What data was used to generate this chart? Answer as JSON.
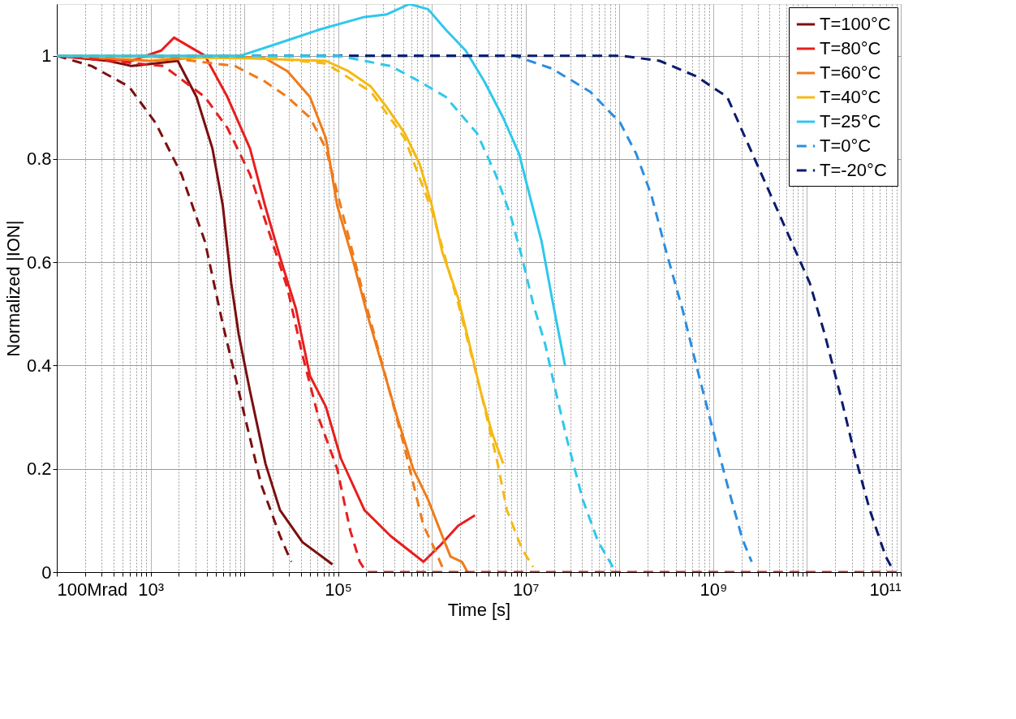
{
  "chart_data": {
    "type": "line",
    "xlabel": "Time [s]",
    "ylabel": "Normalized |ION|",
    "log": "x",
    "grid": true,
    "legend": "top right",
    "xlim": [
      100,
      100000000000
    ],
    "ylim": [
      0,
      1.1
    ],
    "xticks": [
      {
        "value": 100,
        "label": "100Mrad"
      },
      {
        "value": 200,
        "label": null
      },
      {
        "value": 300,
        "label": null
      },
      {
        "value": 400,
        "label": null
      },
      {
        "value": 500,
        "label": null
      },
      {
        "value": 600,
        "label": null
      },
      {
        "value": 700,
        "label": null
      },
      {
        "value": 800,
        "label": null
      },
      {
        "value": 900,
        "label": null
      },
      {
        "value": 1000,
        "label": "10³"
      },
      {
        "value": 2000,
        "label": null
      },
      {
        "value": 3000,
        "label": null
      },
      {
        "value": 4000,
        "label": null
      },
      {
        "value": 5000,
        "label": null
      },
      {
        "value": 6000,
        "label": null
      },
      {
        "value": 7000,
        "label": null
      },
      {
        "value": 8000,
        "label": null
      },
      {
        "value": 9000,
        "label": null
      },
      {
        "value": 10000,
        "label": null
      },
      {
        "value": 20000,
        "label": null
      },
      {
        "value": 30000,
        "label": null
      },
      {
        "value": 40000,
        "label": null
      },
      {
        "value": 50000,
        "label": null
      },
      {
        "value": 60000,
        "label": null
      },
      {
        "value": 70000,
        "label": null
      },
      {
        "value": 80000,
        "label": null
      },
      {
        "value": 90000,
        "label": null
      },
      {
        "value": 100000,
        "label": "10⁵"
      },
      {
        "value": 200000,
        "label": null
      },
      {
        "value": 300000,
        "label": null
      },
      {
        "value": 400000,
        "label": null
      },
      {
        "value": 500000,
        "label": null
      },
      {
        "value": 600000,
        "label": null
      },
      {
        "value": 700000,
        "label": null
      },
      {
        "value": 800000,
        "label": null
      },
      {
        "value": 900000,
        "label": null
      },
      {
        "value": 1000000,
        "label": null
      },
      {
        "value": 2000000,
        "label": null
      },
      {
        "value": 3000000,
        "label": null
      },
      {
        "value": 4000000,
        "label": null
      },
      {
        "value": 5000000,
        "label": null
      },
      {
        "value": 6000000,
        "label": null
      },
      {
        "value": 7000000,
        "label": null
      },
      {
        "value": 8000000,
        "label": null
      },
      {
        "value": 9000000,
        "label": null
      },
      {
        "value": 10000000,
        "label": "10⁷"
      },
      {
        "value": 20000000,
        "label": null
      },
      {
        "value": 30000000,
        "label": null
      },
      {
        "value": 40000000,
        "label": null
      },
      {
        "value": 50000000,
        "label": null
      },
      {
        "value": 60000000,
        "label": null
      },
      {
        "value": 70000000,
        "label": null
      },
      {
        "value": 80000000,
        "label": null
      },
      {
        "value": 90000000,
        "label": null
      },
      {
        "value": 100000000,
        "label": null
      },
      {
        "value": 200000000,
        "label": null
      },
      {
        "value": 300000000,
        "label": null
      },
      {
        "value": 400000000,
        "label": null
      },
      {
        "value": 500000000,
        "label": null
      },
      {
        "value": 600000000,
        "label": null
      },
      {
        "value": 700000000,
        "label": null
      },
      {
        "value": 800000000,
        "label": null
      },
      {
        "value": 900000000,
        "label": null
      },
      {
        "value": 1000000000,
        "label": "10⁹"
      },
      {
        "value": 2000000000,
        "label": null
      },
      {
        "value": 3000000000,
        "label": null
      },
      {
        "value": 4000000000,
        "label": null
      },
      {
        "value": 5000000000,
        "label": null
      },
      {
        "value": 6000000000,
        "label": null
      },
      {
        "value": 7000000000,
        "label": null
      },
      {
        "value": 8000000000,
        "label": null
      },
      {
        "value": 9000000000,
        "label": null
      },
      {
        "value": 10000000000,
        "label": null
      },
      {
        "value": 20000000000,
        "label": null
      },
      {
        "value": 30000000000,
        "label": null
      },
      {
        "value": 40000000000,
        "label": null
      },
      {
        "value": 50000000000,
        "label": null
      },
      {
        "value": 60000000000,
        "label": null
      },
      {
        "value": 70000000000,
        "label": null
      },
      {
        "value": 80000000000,
        "label": null
      },
      {
        "value": 90000000000,
        "label": null
      },
      {
        "value": 100000000000,
        "label": "10¹¹"
      }
    ],
    "yticks": [
      0,
      0.2,
      0.4,
      0.6,
      0.8,
      1
    ],
    "series": [
      {
        "name": "T=100°C",
        "color": "#7b0f0f",
        "line_style": "solid",
        "x": [
          100,
          355,
          630,
          1100,
          1950,
          3090,
          4570,
          5890,
          7240,
          8710,
          11500,
          16800,
          24000,
          41700,
          87000
        ],
        "values": [
          1.0,
          0.99,
          0.98,
          0.985,
          0.99,
          0.92,
          0.82,
          0.71,
          0.56,
          0.46,
          0.35,
          0.21,
          0.12,
          0.058,
          0.015
        ]
      },
      {
        "name": "T=80°C",
        "color": "#e81e1e",
        "line_style": "solid",
        "x": [
          100,
          630,
          1300,
          1780,
          3800,
          6600,
          11500,
          16600,
          24000,
          35500,
          50100,
          74100,
          107000,
          191000,
          363000,
          813000,
          1200000,
          1910000,
          2880000
        ],
        "values": [
          1.0,
          0.99,
          1.01,
          1.035,
          1.0,
          0.92,
          0.82,
          0.71,
          0.61,
          0.51,
          0.38,
          0.32,
          0.22,
          0.12,
          0.07,
          0.02,
          0.05,
          0.09,
          0.11
        ]
      },
      {
        "name": "T=60°C",
        "color": "#ef7b1a",
        "line_style": "solid",
        "x": [
          100,
          1000,
          5890,
          16600,
          28800,
          50100,
          74100,
          97700,
          141000,
          204000,
          295000,
          427000,
          631000,
          912000,
          1290000,
          1580000,
          2090000,
          2400000
        ],
        "values": [
          1.0,
          0.99,
          1.0,
          0.995,
          0.97,
          0.92,
          0.84,
          0.71,
          0.61,
          0.5,
          0.4,
          0.3,
          0.2,
          0.14,
          0.07,
          0.03,
          0.02,
          0.0
        ]
      },
      {
        "name": "T=40°C",
        "color": "#f5b914",
        "line_style": "solid",
        "x": [
          100,
          10000,
          74100,
          129000,
          224000,
          331000,
          513000,
          741000,
          1000000,
          1290000,
          1910000,
          2450000,
          3310000,
          4370000,
          5750000
        ],
        "values": [
          1.0,
          0.995,
          0.99,
          0.97,
          0.94,
          0.9,
          0.85,
          0.79,
          0.71,
          0.62,
          0.53,
          0.45,
          0.35,
          0.27,
          0.21
        ]
      },
      {
        "name": "T=25°C",
        "color": "#2ec8ec",
        "line_style": "solid",
        "x": [
          100,
          2400,
          9120,
          24000,
          61700,
          191000,
          331000,
          575000,
          912000,
          1410000,
          2290000,
          3630000,
          5750000,
          8510000,
          11000000,
          14800000,
          19100000,
          26300000
        ],
        "values": [
          1.0,
          1.0,
          1.0,
          1.025,
          1.05,
          1.075,
          1.08,
          1.1,
          1.09,
          1.05,
          1.01,
          0.95,
          0.88,
          0.81,
          0.73,
          0.64,
          0.53,
          0.4
        ]
      },
      {
        "name": "T=0°C",
        "color": "#2a8de0",
        "line_style": "dashed",
        "x": [
          100,
          7590000,
          19100000,
          49000000,
          102000000,
          151000000,
          219000000,
          316000000,
          468000000,
          661000000,
          977000000,
          1410000000,
          2040000000,
          2570000000
        ],
        "values": [
          1.0,
          1.0,
          0.975,
          0.93,
          0.87,
          0.81,
          0.73,
          0.62,
          0.51,
          0.4,
          0.28,
          0.17,
          0.065,
          0.02
        ]
      },
      {
        "name": "T=-20°C",
        "color": "#0a1a6e",
        "line_style": "dashed",
        "x": [
          100,
          105000000,
          269000000,
          661000000,
          1410000000,
          10700000000,
          15500000000,
          22900000000,
          33100000000,
          46800000000,
          69200000000,
          79400000000
        ],
        "values": [
          1.0,
          1.0,
          0.99,
          0.96,
          0.92,
          0.56,
          0.46,
          0.34,
          0.22,
          0.12,
          0.03,
          0.01
        ]
      },
      {
        "color": "#7b0f0f",
        "line_style": "dashed",
        "x": [
          100,
          235,
          590,
          1130,
          2140,
          3800,
          5890,
          9550,
          15100,
          24000,
          31600
        ],
        "values": [
          1.0,
          0.98,
          0.94,
          0.87,
          0.77,
          0.64,
          0.48,
          0.32,
          0.17,
          0.07,
          0.02
        ]
      },
      {
        "color": "#e81e1e",
        "line_style": "dashed",
        "x": [
          100,
          1380,
          3800,
          6600,
          11500,
          18200,
          28800,
          41700,
          61700,
          97700,
          135000,
          170000,
          200000,
          100000000000
        ],
        "values": [
          1.0,
          0.98,
          0.92,
          0.86,
          0.77,
          0.66,
          0.55,
          0.42,
          0.3,
          0.2,
          0.08,
          0.02,
          0.0,
          0.0
        ]
      },
      {
        "color": "#ef7b1a",
        "line_style": "dashed",
        "x": [
          100,
          1000,
          7940,
          16600,
          28800,
          50100,
          74100,
          191000,
          331000,
          513000,
          813000,
          1100000,
          1290000
        ],
        "values": [
          1.0,
          1.0,
          0.98,
          0.95,
          0.92,
          0.88,
          0.82,
          0.53,
          0.37,
          0.24,
          0.09,
          0.04,
          0.01
        ]
      },
      {
        "color": "#f5b914",
        "line_style": "dashed",
        "x": [
          100,
          10000,
          74100,
          224000,
          513000,
          1000000,
          1910000,
          3310000,
          4900000,
          6310000,
          9120000,
          12000000
        ],
        "values": [
          1.0,
          1.0,
          0.985,
          0.93,
          0.84,
          0.7,
          0.52,
          0.35,
          0.22,
          0.12,
          0.045,
          0.01
        ]
      },
      {
        "color": "#2ec8ec",
        "line_style": "dashed",
        "x": [
          100,
          100000,
          363000,
          741000,
          1410000,
          3020000,
          4790000,
          6920000,
          9120000,
          12000000,
          16200000,
          20900000,
          28200000,
          40700000,
          58900000,
          85100000
        ],
        "values": [
          1.0,
          1.0,
          0.98,
          0.95,
          0.92,
          0.85,
          0.77,
          0.69,
          0.61,
          0.52,
          0.44,
          0.35,
          0.25,
          0.14,
          0.06,
          0.01
        ]
      }
    ]
  }
}
